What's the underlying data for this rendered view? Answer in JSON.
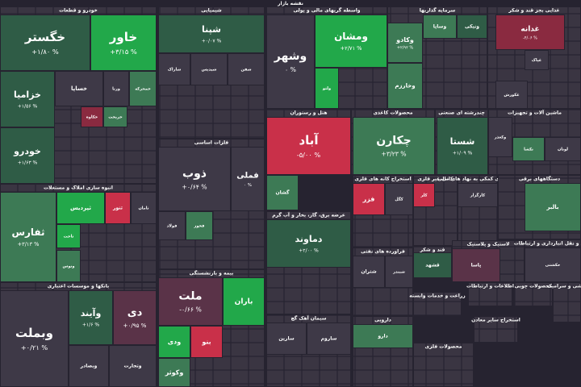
{
  "header": {
    "title": "نقشه بازار"
  },
  "sectors": [
    {
      "title": "خودرو و قطعات",
      "tiles": [
        {
          "name": "خگستر",
          "change": "+۱/۸۰ %"
        },
        {
          "name": "خاور",
          "change": "+۳/۱۵ %"
        },
        {
          "name": "خزامیا",
          "change": "+۱/۵۶ %"
        },
        {
          "name": "خودرو",
          "change": "+۱/۶۳ %"
        },
        {
          "name": "خساپا"
        },
        {
          "name": "ورنا"
        },
        {
          "name": "خمحرکه"
        },
        {
          "name": "خریخت"
        },
        {
          "name": "خکاوه"
        }
      ]
    },
    {
      "title": "انبوه سازی املاک و مستغلات",
      "tiles": [
        {
          "name": "ثفارس",
          "change": "+۳/۱۳ %"
        },
        {
          "name": "ثپردیس"
        },
        {
          "name": "ثنور"
        },
        {
          "name": "ثامان"
        },
        {
          "name": "ثاخت"
        },
        {
          "name": "وتوس"
        }
      ]
    },
    {
      "title": "بانکها و موسسات اعتباری",
      "tiles": [
        {
          "name": "وبملت",
          "change": "+۰/۲۱ %"
        },
        {
          "name": "وآیند",
          "change": "+۱/۶ %"
        },
        {
          "name": "دی",
          "change": "+۰/۹۵ %"
        },
        {
          "name": "وبصادر"
        },
        {
          "name": "وتجارت"
        }
      ]
    },
    {
      "title": "شیمیایی",
      "tiles": [
        {
          "name": "شپنا",
          "change": "+۰/۰۷ %"
        },
        {
          "name": "شاراک"
        },
        {
          "name": "شپدیس"
        },
        {
          "name": "شفن"
        }
      ]
    },
    {
      "title": "فلزات اساسی",
      "tiles": [
        {
          "name": "ذوب",
          "change": "+۰/۶۴ %"
        },
        {
          "name": "فملی",
          "change": "۰ %"
        },
        {
          "name": "فولاد"
        },
        {
          "name": "فخوز"
        }
      ]
    },
    {
      "title": "بیمه و بازنشستگی",
      "tiles": [
        {
          "name": "ملت",
          "change": "-۰/۶۶ %"
        },
        {
          "name": "باران"
        },
        {
          "name": "ودی"
        },
        {
          "name": "بنو"
        },
        {
          "name": "وکوثر"
        }
      ]
    },
    {
      "title": "واسطه گریهای مالی و پولی",
      "tiles": [
        {
          "name": "وشهر",
          "change": "۰ %"
        },
        {
          "name": "ومشان",
          "change": "+۲/۷۱ %"
        },
        {
          "name": "ولتو"
        }
      ]
    },
    {
      "title": "سرمایه گذاریها",
      "tiles": [
        {
          "name": "وکادو",
          "change": "+۲/۹۲ %"
        },
        {
          "name": "وساپا"
        },
        {
          "name": "ونیکی"
        },
        {
          "name": "وخارزم"
        }
      ]
    },
    {
      "title": "غذایی بجز قند و شکر",
      "tiles": [
        {
          "name": "غدانه",
          "change": "-۴/۰۶ %"
        },
        {
          "name": "غپاک"
        },
        {
          "name": "غکورش"
        }
      ]
    },
    {
      "title": "هتل و رستوران",
      "tiles": [
        {
          "name": "آباد",
          "change": "-۵/۰۰ %"
        },
        {
          "name": "گشان"
        }
      ]
    },
    {
      "title": "محصولات کاغذی",
      "tiles": [
        {
          "name": "چکارن",
          "change": "+۳/۲۳ %"
        }
      ]
    },
    {
      "title": "چندرشته ای صنعتی",
      "tiles": [
        {
          "name": "شستا",
          "change": "+۱/۰۹ %"
        }
      ]
    },
    {
      "title": "ماشین آلات و تجهیزات",
      "tiles": [
        {
          "name": "وکغذر"
        },
        {
          "name": "تکشا"
        },
        {
          "name": "لوتان"
        }
      ]
    },
    {
      "title": "عرضه برق، گاز، بخار و آب گرم",
      "tiles": [
        {
          "name": "دماوند",
          "change": "+۲/۰۰ %"
        }
      ]
    },
    {
      "title": "استخراج کانه های فلزی",
      "tiles": [
        {
          "name": "فزر"
        },
        {
          "name": "کگل"
        }
      ]
    },
    {
      "title": "کانی غیر فلزی",
      "tiles": [
        {
          "name": "کلر"
        }
      ]
    },
    {
      "title": "فعالیتهای کمکی به نهاد های مالی",
      "tiles": [
        {
          "name": "کارگزار"
        }
      ]
    },
    {
      "title": "دستگاههای برقی",
      "tiles": [
        {
          "name": "بالبر"
        }
      ]
    },
    {
      "title": "فراورده های نفتی",
      "tiles": [
        {
          "name": "شتران"
        },
        {
          "name": "شبندر"
        }
      ]
    },
    {
      "title": "قند و شکر",
      "tiles": [
        {
          "name": "قشهد"
        }
      ]
    },
    {
      "title": "لاستیک و پلاستیک",
      "tiles": [
        {
          "name": "پاسا"
        }
      ]
    },
    {
      "title": "حمل و نقل انبارداری و ارتباطات",
      "tiles": [
        {
          "name": "حکشتی"
        }
      ]
    },
    {
      "title": "سیمان آهک گچ",
      "tiles": [
        {
          "name": "سارین"
        },
        {
          "name": "ساروم"
        }
      ]
    },
    {
      "title": "دارویی",
      "tiles": [
        {
          "name": "دارو"
        }
      ]
    },
    {
      "title": "محصولات فلزی",
      "tiles": []
    },
    {
      "title": "زراعت و خدمات وابسته",
      "tiles": []
    },
    {
      "title": "اطلاعات و ارتباطات",
      "tiles": []
    },
    {
      "title": "محصولات چوبی",
      "tiles": []
    },
    {
      "title": "استخراج سایر معادن",
      "tiles": []
    },
    {
      "title": "کاشی و سرامیک",
      "tiles": []
    }
  ]
}
